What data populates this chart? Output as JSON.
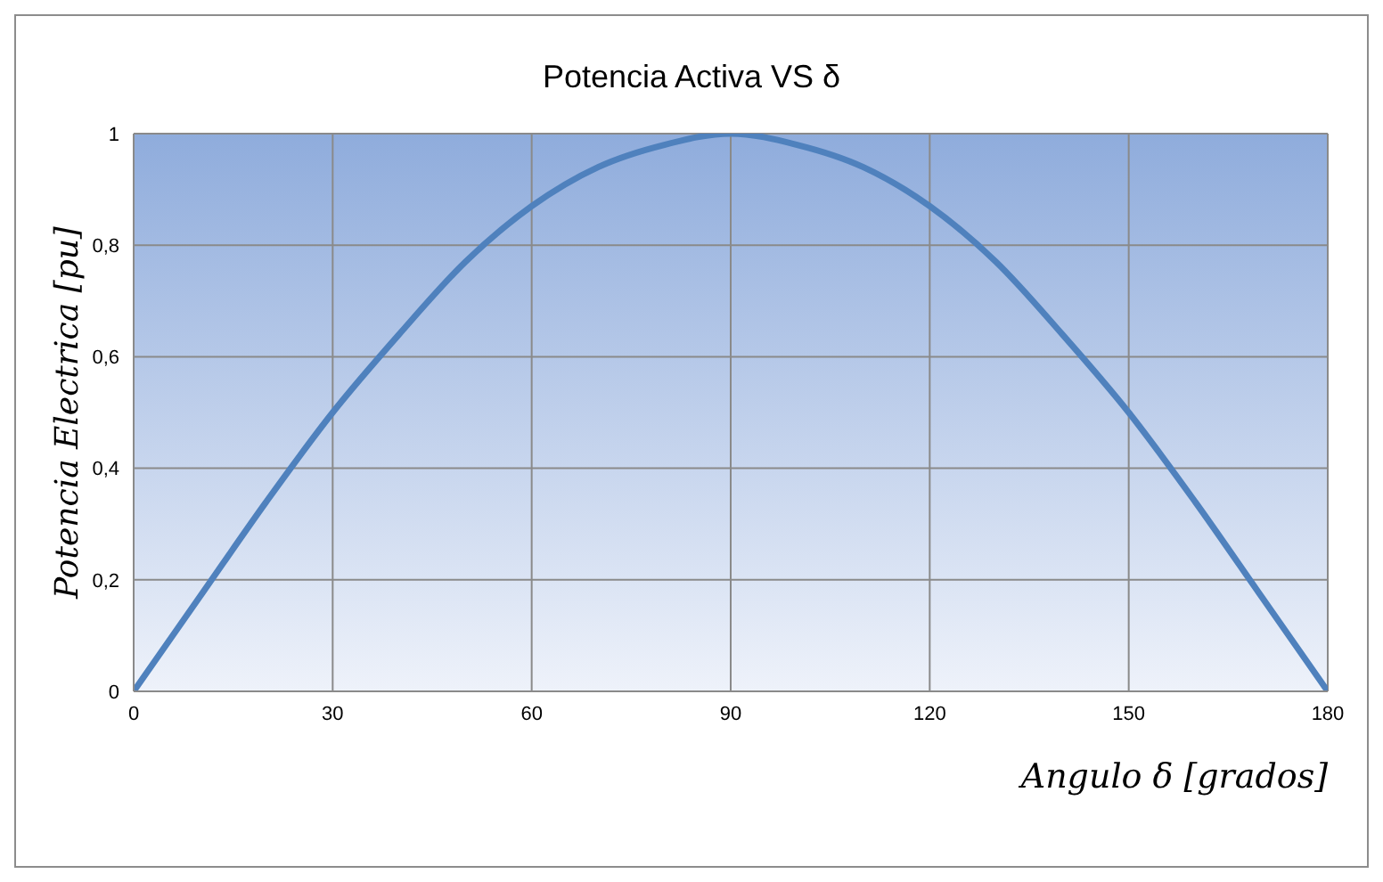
{
  "chart_data": {
    "type": "line",
    "title": "Potencia Activa VS δ",
    "xlabel": "Angulo δ [grados]",
    "ylabel": "Potencia Electrica [pu]",
    "x": [
      0,
      10,
      20,
      30,
      40,
      50,
      60,
      70,
      80,
      90,
      100,
      110,
      120,
      130,
      140,
      150,
      160,
      170,
      180
    ],
    "series": [
      {
        "color": "#4f81bd",
        "values": [
          0,
          0.17,
          0.34,
          0.5,
          0.64,
          0.77,
          0.87,
          0.94,
          0.98,
          1,
          0.98,
          0.94,
          0.87,
          0.77,
          0.64,
          0.5,
          0.34,
          0.17,
          0
        ]
      }
    ],
    "xlim": [
      0,
      180
    ],
    "xticks": [
      0,
      30,
      60,
      90,
      120,
      150,
      180
    ],
    "ylim": [
      0,
      1
    ],
    "yticks": [
      0,
      {
        "value": 0.2,
        "label": "0,2"
      },
      {
        "value": 0.4,
        "label": "0,4"
      },
      {
        "value": 0.6,
        "label": "0,6"
      },
      {
        "value": 0.8,
        "label": "0,8"
      },
      1
    ],
    "grid": true,
    "legend": false,
    "marker": "none",
    "line_style": "solid"
  }
}
